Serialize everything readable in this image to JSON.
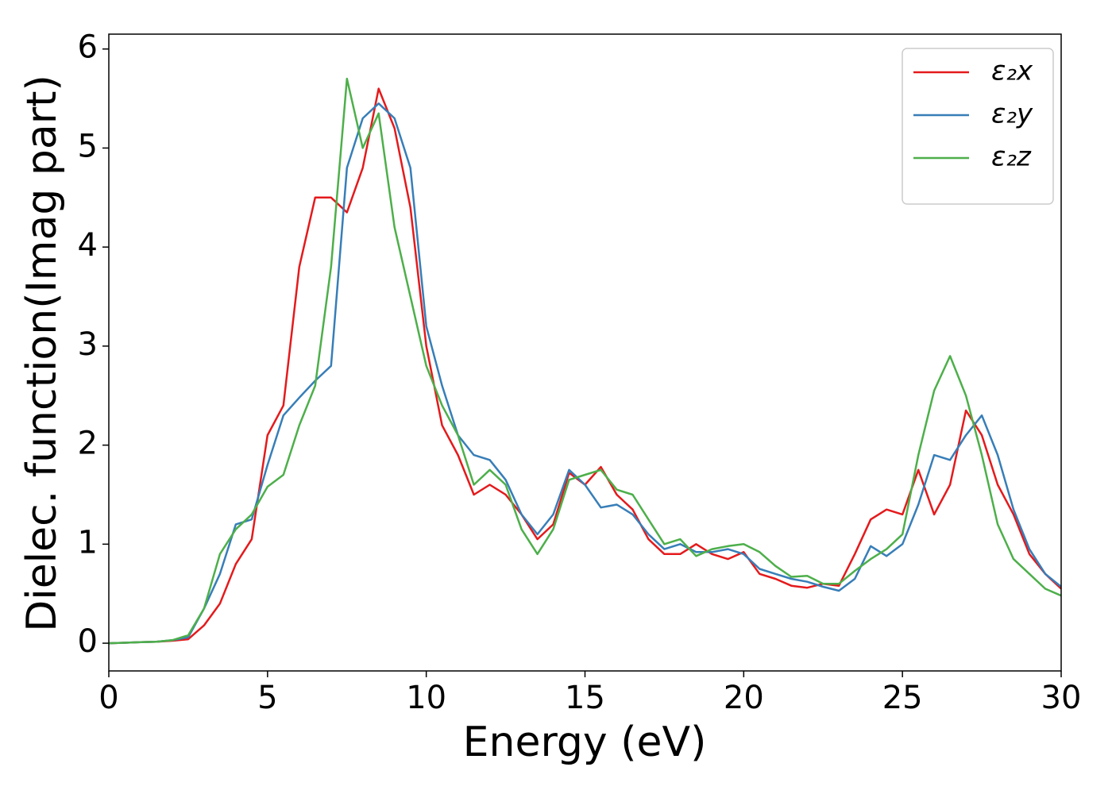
{
  "chart_data": {
    "type": "line",
    "xlabel": "Energy (eV)",
    "ylabel": "Dielec. function(Imag part)",
    "x": [
      0,
      0.5,
      1,
      1.5,
      2,
      2.5,
      3,
      3.5,
      4,
      4.5,
      5,
      5.5,
      6,
      6.5,
      7,
      7.5,
      8,
      8.5,
      9,
      9.5,
      10,
      10.5,
      11,
      11.5,
      12,
      12.5,
      13,
      13.5,
      14,
      14.5,
      15,
      15.5,
      16,
      16.5,
      17,
      17.5,
      18,
      18.5,
      19,
      19.5,
      20,
      20.5,
      21,
      21.5,
      22,
      22.5,
      23,
      23.5,
      24,
      24.5,
      25,
      25.5,
      26,
      26.5,
      27,
      27.5,
      28,
      28.5,
      29,
      29.5,
      30
    ],
    "series": [
      {
        "name": "ε₂x",
        "color": "#e41a1c",
        "values": [
          0,
          0.005,
          0.01,
          0.015,
          0.025,
          0.04,
          0.18,
          0.4,
          0.8,
          1.05,
          2.1,
          2.4,
          3.8,
          4.5,
          4.5,
          4.35,
          4.8,
          5.6,
          5.2,
          4.4,
          3.0,
          2.2,
          1.9,
          1.5,
          1.6,
          1.5,
          1.3,
          1.05,
          1.2,
          1.72,
          1.6,
          1.78,
          1.5,
          1.35,
          1.05,
          0.9,
          0.9,
          1.0,
          0.9,
          0.85,
          0.92,
          0.7,
          0.65,
          0.58,
          0.56,
          0.6,
          0.58,
          0.9,
          1.25,
          1.35,
          1.3,
          1.75,
          1.3,
          1.6,
          2.35,
          2.1,
          1.6,
          1.3,
          0.9,
          0.7,
          0.55
        ]
      },
      {
        "name": "ε₂y",
        "color": "#377eb8",
        "values": [
          0,
          0.005,
          0.01,
          0.015,
          0.03,
          0.06,
          0.35,
          0.7,
          1.2,
          1.25,
          1.8,
          2.3,
          2.48,
          2.65,
          2.8,
          4.8,
          5.3,
          5.45,
          5.3,
          4.8,
          3.2,
          2.6,
          2.1,
          1.9,
          1.85,
          1.65,
          1.3,
          1.1,
          1.3,
          1.75,
          1.6,
          1.37,
          1.4,
          1.3,
          1.1,
          0.95,
          1.0,
          0.92,
          0.92,
          0.95,
          0.9,
          0.75,
          0.7,
          0.65,
          0.62,
          0.57,
          0.53,
          0.65,
          0.98,
          0.88,
          1.0,
          1.4,
          1.9,
          1.85,
          2.1,
          2.3,
          1.9,
          1.35,
          0.95,
          0.7,
          0.57
        ]
      },
      {
        "name": "ε₂z",
        "color": "#4daf4a",
        "values": [
          0,
          0.005,
          0.01,
          0.015,
          0.03,
          0.08,
          0.35,
          0.9,
          1.15,
          1.3,
          1.58,
          1.7,
          2.2,
          2.6,
          3.8,
          5.7,
          5.0,
          5.35,
          4.2,
          3.5,
          2.8,
          2.4,
          2.1,
          1.6,
          1.75,
          1.6,
          1.15,
          0.9,
          1.15,
          1.65,
          1.7,
          1.75,
          1.55,
          1.5,
          1.25,
          1.0,
          1.05,
          0.88,
          0.95,
          0.98,
          1.0,
          0.92,
          0.78,
          0.67,
          0.68,
          0.6,
          0.6,
          0.73,
          0.85,
          0.95,
          1.1,
          1.9,
          2.55,
          2.9,
          2.5,
          1.9,
          1.2,
          0.85,
          0.7,
          0.55,
          0.48
        ]
      }
    ],
    "xlim": [
      0,
      30
    ],
    "xticks": [
      0,
      5,
      10,
      15,
      20,
      25,
      30
    ],
    "ylim": [
      -0.28,
      6.15
    ],
    "yticks": [
      0,
      1,
      2,
      3,
      4,
      5,
      6
    ],
    "legend": "upper right"
  }
}
